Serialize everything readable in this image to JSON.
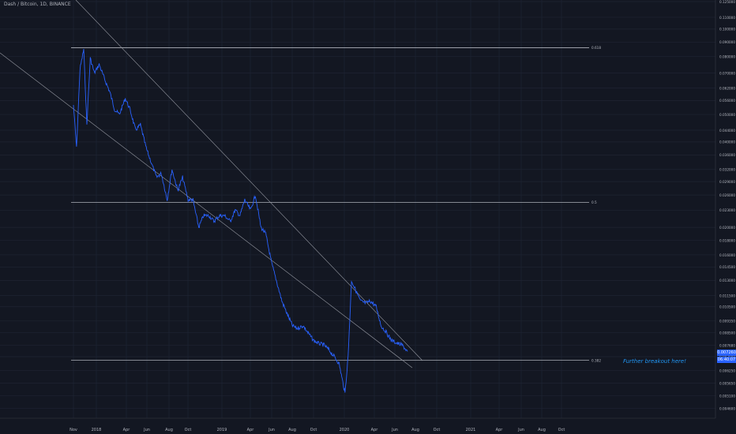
{
  "header": {
    "symbol": "Dash / Bitcoin, 1D, BINANCE"
  },
  "chart_data": {
    "type": "line",
    "scale": "log",
    "ylim": [
      0.0045,
      0.125
    ],
    "y_ticks": [
      "0.125000",
      "0.110000",
      "0.100000",
      "0.090000",
      "0.080000",
      "0.070000",
      "0.062000",
      "0.056000",
      "0.050000",
      "0.044000",
      "0.040000",
      "0.036000",
      "0.032000",
      "0.029000",
      "0.026000",
      "0.023000",
      "0.020000",
      "0.018000",
      "0.016000",
      "0.014500",
      "0.013000",
      "0.011500",
      "0.010500",
      "0.009350",
      "0.008500",
      "0.007680",
      "0.007000",
      "0.006250",
      "0.005650",
      "0.005100",
      "0.004600"
    ],
    "x_ticks": [
      "Nov",
      "2018",
      "Apr",
      "Jun",
      "Aug",
      "Oct",
      "2019",
      "Apr",
      "Jun",
      "Aug",
      "Oct",
      "2020",
      "Apr",
      "Jun",
      "Aug",
      "Oct",
      "2021",
      "Apr",
      "Jun",
      "Aug",
      "Oct"
    ],
    "grid": true,
    "series": [
      {
        "color": "#2962ff",
        "x": [
          "2017-11-01",
          "2017-11-10",
          "2017-11-20",
          "2017-12-01",
          "2017-12-10",
          "2017-12-20",
          "2018-01-01",
          "2018-01-15",
          "2018-02-01",
          "2018-02-15",
          "2018-03-01",
          "2018-03-15",
          "2018-04-01",
          "2018-04-15",
          "2018-05-01",
          "2018-05-15",
          "2018-06-01",
          "2018-06-15",
          "2018-07-01",
          "2018-07-15",
          "2018-08-01",
          "2018-08-15",
          "2018-09-01",
          "2018-09-15",
          "2018-10-01",
          "2018-10-15",
          "2018-11-01",
          "2018-11-15",
          "2018-12-01",
          "2018-12-15",
          "2019-01-01",
          "2019-01-15",
          "2019-02-01",
          "2019-02-15",
          "2019-03-01",
          "2019-03-15",
          "2019-04-01",
          "2019-04-15",
          "2019-05-01",
          "2019-05-15",
          "2019-06-01",
          "2019-06-15",
          "2019-07-01",
          "2019-07-15",
          "2019-08-01",
          "2019-08-15",
          "2019-09-01",
          "2019-09-15",
          "2019-10-01",
          "2019-10-15",
          "2019-11-01",
          "2019-11-15",
          "2019-12-01",
          "2019-12-15",
          "2020-01-01",
          "2020-01-10",
          "2020-01-20",
          "2020-02-01",
          "2020-02-15",
          "2020-03-01",
          "2020-03-15",
          "2020-04-01",
          "2020-04-15",
          "2020-05-01",
          "2020-05-15",
          "2020-06-01",
          "2020-06-15",
          "2020-07-01"
        ],
        "values": [
          0.054,
          0.038,
          0.072,
          0.085,
          0.046,
          0.079,
          0.07,
          0.075,
          0.066,
          0.06,
          0.052,
          0.05,
          0.057,
          0.052,
          0.044,
          0.046,
          0.038,
          0.034,
          0.03,
          0.031,
          0.025,
          0.032,
          0.027,
          0.03,
          0.025,
          0.025,
          0.02,
          0.022,
          0.022,
          0.021,
          0.022,
          0.022,
          0.021,
          0.023,
          0.022,
          0.025,
          0.023,
          0.026,
          0.02,
          0.019,
          0.015,
          0.013,
          0.011,
          0.01,
          0.009,
          0.0088,
          0.009,
          0.0085,
          0.008,
          0.0078,
          0.0077,
          0.0074,
          0.007,
          0.0066,
          0.0052,
          0.007,
          0.013,
          0.012,
          0.011,
          0.0108,
          0.011,
          0.0105,
          0.009,
          0.0085,
          0.008,
          0.0078,
          0.0077,
          0.0073
        ]
      }
    ],
    "fib_levels": [
      {
        "label": "0.618",
        "value": 0.086
      },
      {
        "label": "0.5",
        "value": 0.0245
      },
      {
        "label": "0.382",
        "value": 0.0068
      }
    ],
    "current_price": "0.007260",
    "countdown": "06:40:07",
    "annotation": "Further breakout here!"
  }
}
